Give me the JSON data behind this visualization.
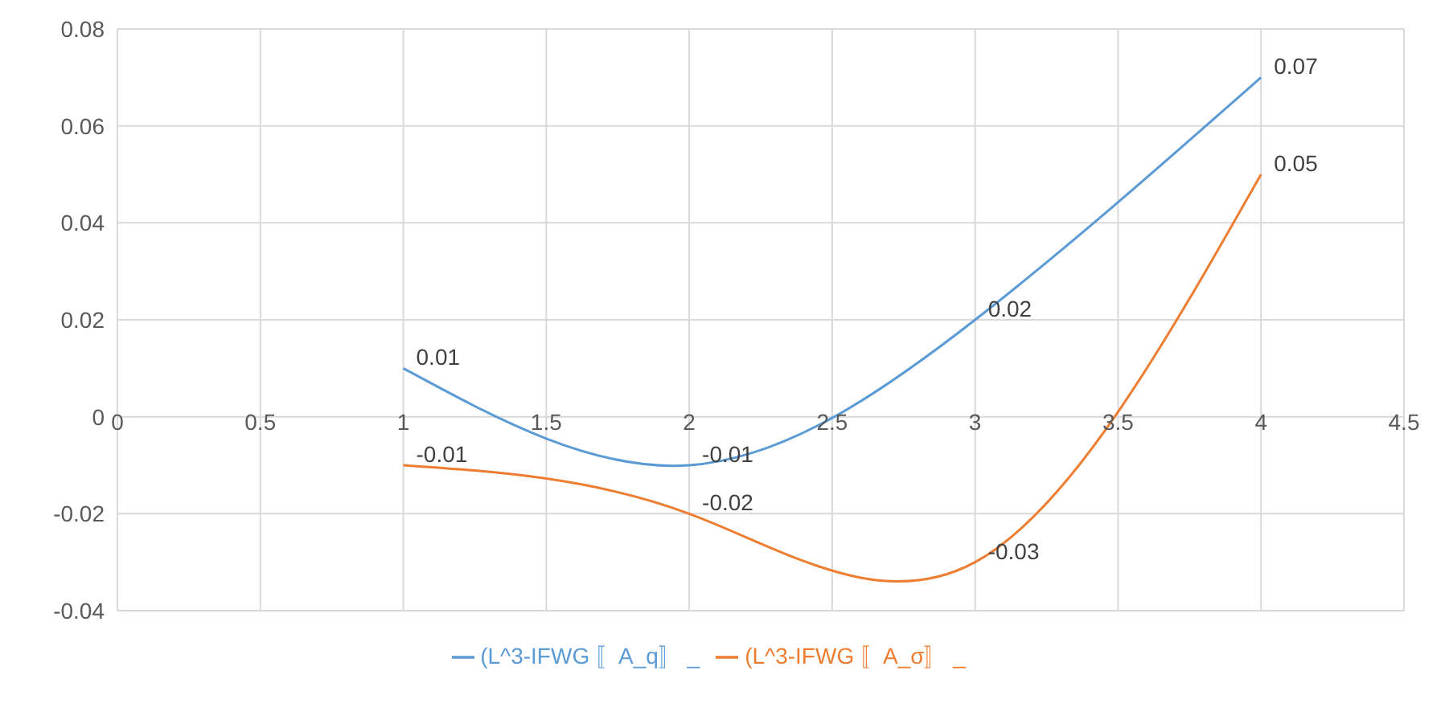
{
  "chart_data": {
    "type": "line",
    "x": [
      1,
      2,
      3,
      4
    ],
    "series": [
      {
        "name": "(L^3-IFWG 〚A_q〛 _",
        "color": "#5b9bd5",
        "values": [
          0.01,
          -0.01,
          0.02,
          0.07
        ]
      },
      {
        "name": "(L^3-IFWG 〚A_σ〛 _",
        "color": "#ed7d31",
        "values": [
          -0.01,
          -0.02,
          -0.03,
          0.05
        ]
      }
    ],
    "xlim": [
      0,
      4.5
    ],
    "xticks": [
      0,
      0.5,
      1,
      1.5,
      2,
      2.5,
      3,
      3.5,
      4,
      4.5
    ],
    "ylim": [
      -0.04,
      0.08
    ],
    "yticks": [
      -0.04,
      -0.02,
      0,
      0.02,
      0.04,
      0.06,
      0.08
    ],
    "grid": true,
    "legend": "bottom",
    "data_labels": true,
    "marker": "none",
    "line_style": "solid"
  }
}
